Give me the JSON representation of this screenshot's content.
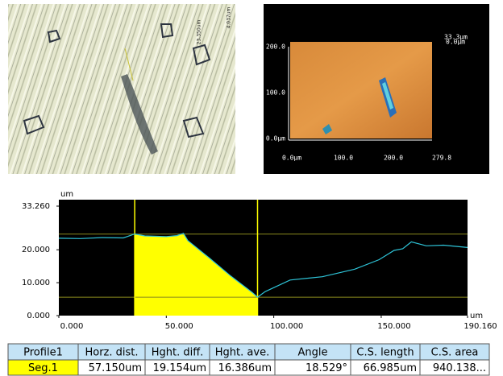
{
  "micrograph": {
    "labels": [
      "23.350um",
      "4.037um"
    ]
  },
  "height_map": {
    "scale_labels": [
      "33.3μm",
      "0.0μm"
    ],
    "y_labels": [
      "200.0",
      "100.0",
      "0.0μm"
    ],
    "x_labels": [
      "0.0μm",
      "100.0",
      "200.0",
      "279.8"
    ]
  },
  "chart_data": {
    "type": "line",
    "y_unit": "um",
    "x_unit": "um",
    "x": [
      0,
      10,
      20,
      30,
      35.3,
      40,
      50,
      55,
      58,
      60,
      70,
      80,
      90,
      92.45,
      96,
      107.6,
      122.6,
      137.7,
      149,
      156,
      160,
      164,
      171,
      179,
      190.16
    ],
    "values": [
      23.5,
      23.4,
      23.7,
      23.6,
      24.8,
      24.2,
      24.0,
      24.3,
      25.0,
      22.8,
      17.5,
      12.0,
      7.0,
      5.6,
      7.3,
      10.8,
      11.8,
      14.1,
      17.0,
      19.8,
      20.3,
      22.4,
      21.2,
      21.4,
      20.7
    ],
    "color": "#2ec4d8",
    "segment": {
      "start": 35.3,
      "end": 92.45,
      "color": "#ffff00"
    },
    "levels": [
      24.76,
      5.6
    ],
    "xlim": [
      0,
      190.16
    ],
    "xticks": [
      {
        "value": 0,
        "label": "0.000"
      },
      {
        "value": 50,
        "label": "50.000"
      },
      {
        "value": 100,
        "label": "100.000"
      },
      {
        "value": 150,
        "label": "150.000"
      },
      {
        "value": 190.16,
        "label": "190.160"
      }
    ],
    "ylim": [
      0,
      33.26
    ],
    "yticks": [
      {
        "value": 0,
        "label": "0.000"
      },
      {
        "value": 10,
        "label": "10.000"
      },
      {
        "value": 20,
        "label": "20.000"
      },
      {
        "value": 33.26,
        "label": "33.260"
      }
    ]
  },
  "table": {
    "header": [
      "Profile1",
      "Horz. dist.",
      "Hght. diff.",
      "Hght. ave.",
      "Angle",
      "C.S. length",
      "C.S. area"
    ],
    "rows": [
      [
        "Seg.1",
        "57.150um",
        "19.154um",
        "16.386um",
        "18.529°",
        "66.985um",
        "940.138..."
      ]
    ]
  }
}
